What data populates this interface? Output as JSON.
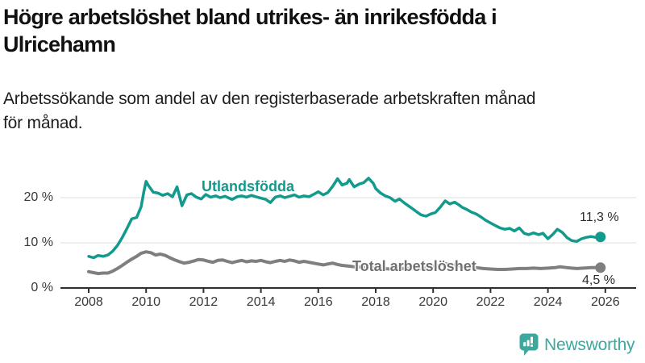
{
  "header": {
    "title_lines": [
      "Högre arbetslöshet bland utrikes- än inrikesfödda i",
      "Ulricehamn"
    ],
    "subtitle_lines": [
      "Arbetssökande som andel av den registerbaserade arbetskraften månad",
      "för månad."
    ]
  },
  "chart_data": {
    "type": "line",
    "unit": "%",
    "grid": "horizontal",
    "x_axis": {
      "ticks": [
        2008,
        2010,
        2012,
        2014,
        2016,
        2018,
        2020,
        2022,
        2024,
        2026
      ],
      "range": [
        2008,
        2026
      ]
    },
    "y_axis": {
      "ticks": [
        {
          "value": 0,
          "label": "0 %"
        },
        {
          "value": 10,
          "label": "10 %"
        },
        {
          "value": 20,
          "label": "20 %"
        }
      ],
      "range": [
        0,
        26
      ]
    },
    "colors": {
      "axis": "#2e2e2e",
      "grid": "#dcdcdc"
    },
    "series": [
      {
        "name": "Utlandsfödda",
        "color": "#129A8D",
        "end_value": 11.3,
        "end_label": "11,3 %",
        "points": [
          [
            2008.0,
            7.0
          ],
          [
            2008.17,
            6.7
          ],
          [
            2008.33,
            7.2
          ],
          [
            2008.5,
            7.0
          ],
          [
            2008.67,
            7.3
          ],
          [
            2008.83,
            8.1
          ],
          [
            2009.0,
            9.4
          ],
          [
            2009.17,
            11.2
          ],
          [
            2009.33,
            13.1
          ],
          [
            2009.5,
            15.3
          ],
          [
            2009.67,
            15.6
          ],
          [
            2009.83,
            18.0
          ],
          [
            2009.92,
            21.3
          ],
          [
            2010.0,
            23.6
          ],
          [
            2010.08,
            22.7
          ],
          [
            2010.25,
            21.2
          ],
          [
            2010.42,
            21.0
          ],
          [
            2010.58,
            20.5
          ],
          [
            2010.75,
            20.9
          ],
          [
            2010.92,
            20.2
          ],
          [
            2011.08,
            22.4
          ],
          [
            2011.25,
            18.2
          ],
          [
            2011.42,
            20.6
          ],
          [
            2011.58,
            20.9
          ],
          [
            2011.75,
            20.1
          ],
          [
            2011.92,
            19.7
          ],
          [
            2012.08,
            20.7
          ],
          [
            2012.25,
            20.1
          ],
          [
            2012.42,
            20.4
          ],
          [
            2012.58,
            20.0
          ],
          [
            2012.75,
            20.3
          ],
          [
            2012.92,
            19.8
          ],
          [
            2013.0,
            19.6
          ],
          [
            2013.17,
            20.2
          ],
          [
            2013.33,
            20.4
          ],
          [
            2013.5,
            20.1
          ],
          [
            2013.67,
            20.5
          ],
          [
            2013.83,
            20.2
          ],
          [
            2014.0,
            19.9
          ],
          [
            2014.17,
            19.6
          ],
          [
            2014.33,
            18.9
          ],
          [
            2014.5,
            20.1
          ],
          [
            2014.67,
            20.4
          ],
          [
            2014.83,
            20.0
          ],
          [
            2015.0,
            20.3
          ],
          [
            2015.17,
            20.6
          ],
          [
            2015.33,
            20.1
          ],
          [
            2015.5,
            20.4
          ],
          [
            2015.67,
            20.2
          ],
          [
            2015.83,
            20.7
          ],
          [
            2016.0,
            21.3
          ],
          [
            2016.17,
            20.6
          ],
          [
            2016.33,
            21.1
          ],
          [
            2016.5,
            22.5
          ],
          [
            2016.67,
            24.2
          ],
          [
            2016.83,
            22.8
          ],
          [
            2017.0,
            23.2
          ],
          [
            2017.08,
            24.0
          ],
          [
            2017.25,
            22.4
          ],
          [
            2017.42,
            23.0
          ],
          [
            2017.58,
            23.3
          ],
          [
            2017.75,
            24.3
          ],
          [
            2017.92,
            23.1
          ],
          [
            2018.0,
            22.0
          ],
          [
            2018.17,
            21.0
          ],
          [
            2018.33,
            20.4
          ],
          [
            2018.5,
            20.0
          ],
          [
            2018.67,
            19.2
          ],
          [
            2018.83,
            19.7
          ],
          [
            2019.0,
            18.8
          ],
          [
            2019.25,
            17.7
          ],
          [
            2019.42,
            16.9
          ],
          [
            2019.58,
            16.2
          ],
          [
            2019.75,
            15.9
          ],
          [
            2019.92,
            16.4
          ],
          [
            2020.08,
            16.7
          ],
          [
            2020.25,
            17.9
          ],
          [
            2020.42,
            19.3
          ],
          [
            2020.58,
            18.6
          ],
          [
            2020.75,
            19.0
          ],
          [
            2020.92,
            18.3
          ],
          [
            2021.0,
            17.9
          ],
          [
            2021.17,
            17.4
          ],
          [
            2021.33,
            16.8
          ],
          [
            2021.5,
            16.4
          ],
          [
            2021.67,
            15.7
          ],
          [
            2021.83,
            15.0
          ],
          [
            2022.0,
            14.4
          ],
          [
            2022.17,
            13.8
          ],
          [
            2022.33,
            13.3
          ],
          [
            2022.5,
            13.0
          ],
          [
            2022.67,
            13.2
          ],
          [
            2022.83,
            12.6
          ],
          [
            2023.0,
            13.3
          ],
          [
            2023.17,
            12.1
          ],
          [
            2023.33,
            11.8
          ],
          [
            2023.5,
            12.2
          ],
          [
            2023.67,
            11.8
          ],
          [
            2023.83,
            12.1
          ],
          [
            2024.0,
            10.9
          ],
          [
            2024.17,
            11.9
          ],
          [
            2024.33,
            13.0
          ],
          [
            2024.5,
            12.3
          ],
          [
            2024.67,
            11.1
          ],
          [
            2024.83,
            10.5
          ],
          [
            2025.0,
            10.3
          ],
          [
            2025.17,
            10.9
          ],
          [
            2025.33,
            11.2
          ],
          [
            2025.5,
            11.4
          ],
          [
            2025.67,
            11.2
          ],
          [
            2025.83,
            11.3
          ]
        ]
      },
      {
        "name": "Total arbetslöshet",
        "color": "#7F7F7F",
        "end_value": 4.5,
        "end_label": "4,5 %",
        "points": [
          [
            2008.0,
            3.6
          ],
          [
            2008.17,
            3.4
          ],
          [
            2008.33,
            3.2
          ],
          [
            2008.5,
            3.3
          ],
          [
            2008.67,
            3.3
          ],
          [
            2008.83,
            3.7
          ],
          [
            2009.0,
            4.3
          ],
          [
            2009.17,
            5.0
          ],
          [
            2009.33,
            5.7
          ],
          [
            2009.5,
            6.4
          ],
          [
            2009.67,
            7.0
          ],
          [
            2009.83,
            7.7
          ],
          [
            2010.0,
            8.0
          ],
          [
            2010.17,
            7.8
          ],
          [
            2010.33,
            7.3
          ],
          [
            2010.5,
            7.5
          ],
          [
            2010.67,
            7.2
          ],
          [
            2010.83,
            6.7
          ],
          [
            2011.0,
            6.2
          ],
          [
            2011.17,
            5.8
          ],
          [
            2011.33,
            5.5
          ],
          [
            2011.5,
            5.7
          ],
          [
            2011.67,
            6.0
          ],
          [
            2011.83,
            6.3
          ],
          [
            2012.0,
            6.2
          ],
          [
            2012.17,
            5.9
          ],
          [
            2012.33,
            5.7
          ],
          [
            2012.5,
            6.1
          ],
          [
            2012.67,
            6.2
          ],
          [
            2012.83,
            5.9
          ],
          [
            2013.0,
            5.6
          ],
          [
            2013.17,
            5.9
          ],
          [
            2013.33,
            6.1
          ],
          [
            2013.5,
            5.8
          ],
          [
            2013.67,
            6.0
          ],
          [
            2013.83,
            5.9
          ],
          [
            2014.0,
            6.1
          ],
          [
            2014.17,
            5.8
          ],
          [
            2014.33,
            5.6
          ],
          [
            2014.5,
            5.9
          ],
          [
            2014.67,
            6.1
          ],
          [
            2014.83,
            5.9
          ],
          [
            2015.0,
            6.2
          ],
          [
            2015.17,
            6.0
          ],
          [
            2015.33,
            5.7
          ],
          [
            2015.5,
            5.9
          ],
          [
            2015.67,
            5.7
          ],
          [
            2015.83,
            5.5
          ],
          [
            2016.0,
            5.3
          ],
          [
            2016.17,
            5.1
          ],
          [
            2016.33,
            5.3
          ],
          [
            2016.5,
            5.5
          ],
          [
            2016.67,
            5.2
          ],
          [
            2016.83,
            5.0
          ],
          [
            2017.0,
            4.9
          ],
          [
            2017.25,
            4.7
          ],
          [
            2017.5,
            4.6
          ],
          [
            2017.75,
            4.5
          ],
          [
            2018.0,
            4.4
          ],
          [
            2018.25,
            4.3
          ],
          [
            2018.5,
            4.2
          ],
          [
            2018.75,
            4.3
          ],
          [
            2019.0,
            4.3
          ],
          [
            2019.25,
            4.4
          ],
          [
            2019.5,
            4.3
          ],
          [
            2019.75,
            4.4
          ],
          [
            2020.0,
            4.7
          ],
          [
            2020.25,
            5.1
          ],
          [
            2020.42,
            5.4
          ],
          [
            2020.67,
            5.2
          ],
          [
            2020.83,
            5.0
          ],
          [
            2021.0,
            4.9
          ],
          [
            2021.25,
            4.7
          ],
          [
            2021.5,
            4.5
          ],
          [
            2021.75,
            4.3
          ],
          [
            2022.0,
            4.2
          ],
          [
            2022.25,
            4.1
          ],
          [
            2022.5,
            4.1
          ],
          [
            2022.75,
            4.2
          ],
          [
            2023.0,
            4.3
          ],
          [
            2023.25,
            4.3
          ],
          [
            2023.5,
            4.4
          ],
          [
            2023.75,
            4.3
          ],
          [
            2024.0,
            4.4
          ],
          [
            2024.25,
            4.5
          ],
          [
            2024.42,
            4.7
          ],
          [
            2024.67,
            4.5
          ],
          [
            2024.83,
            4.4
          ],
          [
            2025.0,
            4.3
          ],
          [
            2025.25,
            4.4
          ],
          [
            2025.5,
            4.5
          ],
          [
            2025.83,
            4.5
          ]
        ]
      }
    ]
  },
  "branding": {
    "logo_text": "Newsworthy",
    "logo_color": "#3CA89E",
    "icon": "bar-chart-speech-bubble-icon"
  }
}
